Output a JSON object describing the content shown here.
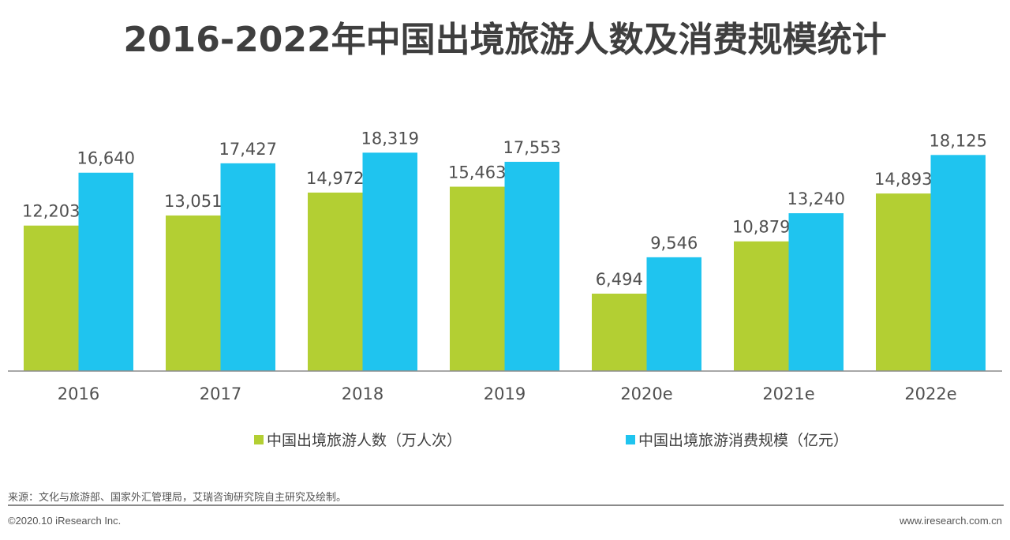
{
  "chart_data": {
    "type": "bar",
    "title": "2016-2022年中国出境旅游人数及消费规模统计",
    "categories": [
      "2016",
      "2017",
      "2018",
      "2019",
      "2020e",
      "2021e",
      "2022e"
    ],
    "series": [
      {
        "name": "中国出境旅游人数（万人次）",
        "color": "#b3cf33",
        "values": [
          12203,
          13051,
          14972,
          15463,
          6494,
          10879,
          14893
        ],
        "labels": [
          "12,203",
          "13,051",
          "14,972",
          "15,463",
          "6,494",
          "10,879",
          "14,893"
        ]
      },
      {
        "name": "中国出境旅游消费规模（亿元）",
        "color": "#1fc4ef",
        "values": [
          16640,
          17427,
          18319,
          17553,
          9546,
          13240,
          18125
        ],
        "labels": [
          "16,640",
          "17,427",
          "18,319",
          "17,553",
          "9,546",
          "13,240",
          "18,125"
        ]
      }
    ],
    "ylim": [
      0,
      20000
    ],
    "grid": false,
    "legend_position": "bottom"
  },
  "footer": {
    "source": "来源：文化与旅游部、国家外汇管理局，艾瑞咨询研究院自主研究及绘制。",
    "copyright": "©2020.10 iResearch Inc.",
    "website": "www.iresearch.com.cn"
  }
}
